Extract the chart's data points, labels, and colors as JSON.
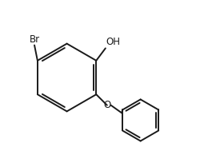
{
  "bg_color": "#ffffff",
  "line_color": "#1a1a1a",
  "line_width": 1.4,
  "font_size": 8.5,
  "Br_label": "Br",
  "OH_label": "OH",
  "O_label": "O"
}
